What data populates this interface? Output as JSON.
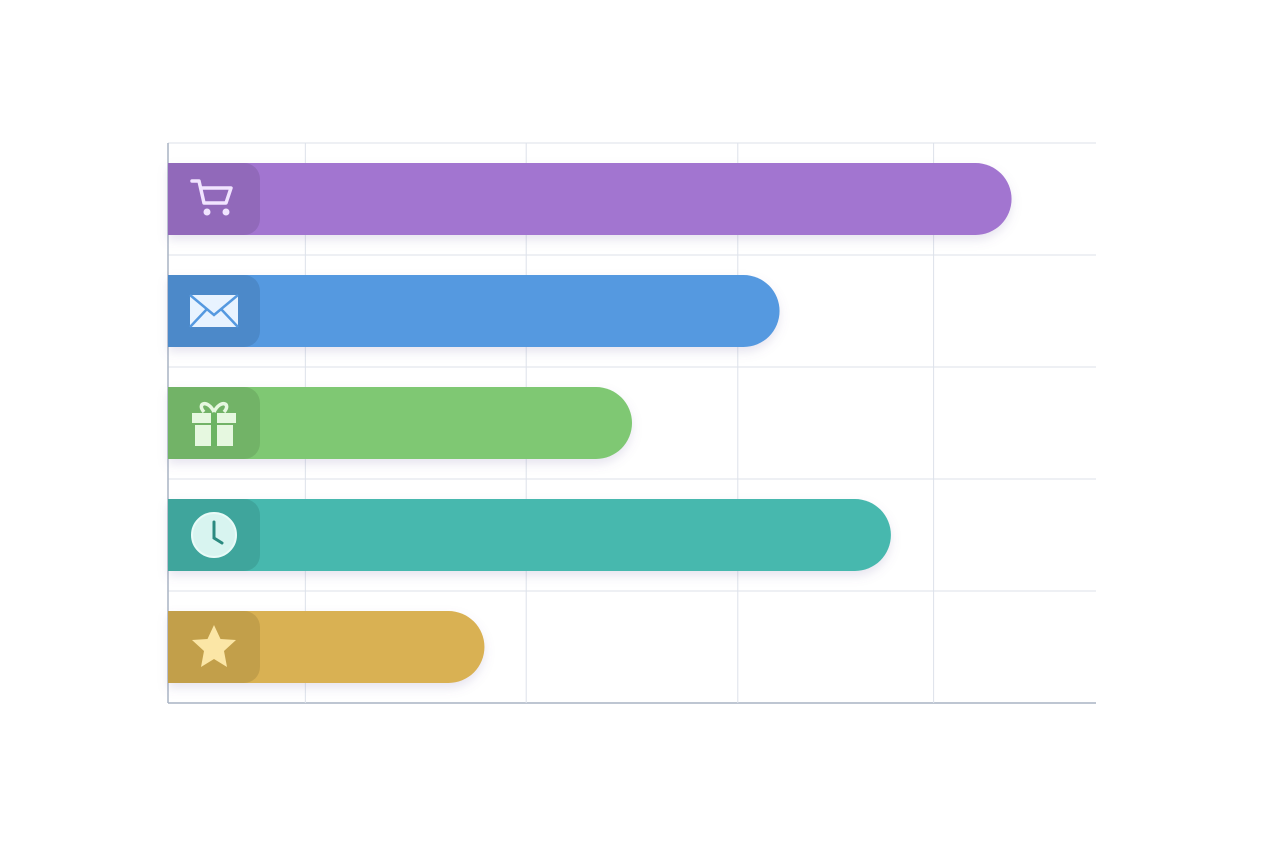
{
  "chart_data": {
    "type": "bar",
    "orientation": "horizontal",
    "categories": [
      null,
      null,
      null,
      null,
      null
    ],
    "values": [
      90.9,
      65.9,
      50.0,
      77.9,
      34.1
    ],
    "colors": [
      "#a274d0",
      "#5599e0",
      "#7fc873",
      "#47b8ae",
      "#d9b152"
    ],
    "xlim": [
      0,
      100
    ],
    "gridlines": [
      14.8,
      38.6,
      61.4,
      82.5
    ],
    "grid": true
  }
}
